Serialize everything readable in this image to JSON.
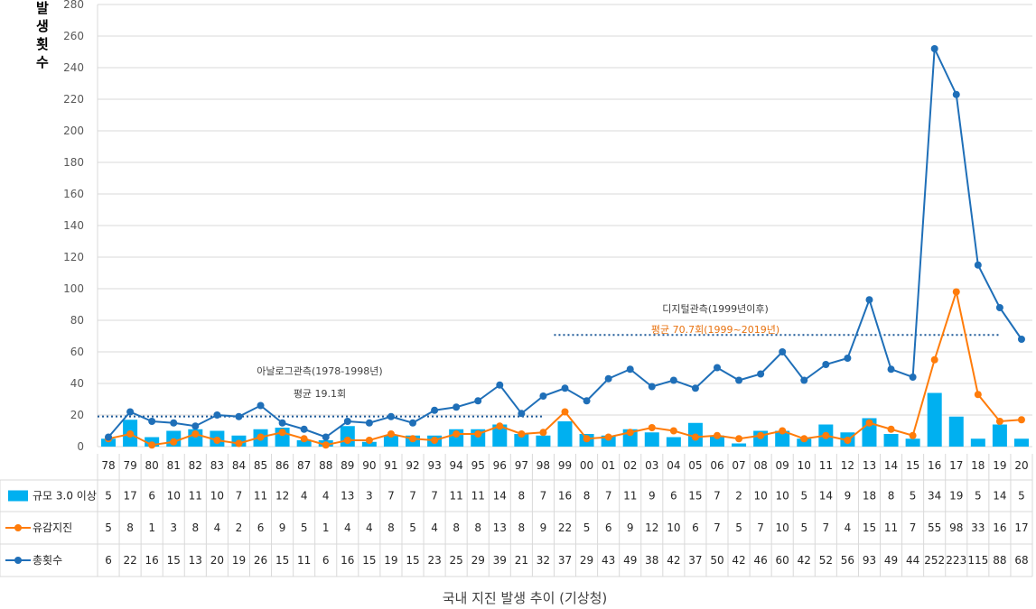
{
  "chart_data": {
    "type": "bar",
    "title": "국내 지진 발생 추이 (기상청)",
    "ylabel": "발생횟수",
    "ylim": [
      0,
      280
    ],
    "yticks": [
      0,
      20,
      40,
      60,
      80,
      100,
      120,
      140,
      160,
      180,
      200,
      220,
      240,
      260,
      280
    ],
    "grid": true,
    "categories": [
      "78",
      "79",
      "80",
      "81",
      "82",
      "83",
      "84",
      "85",
      "86",
      "87",
      "88",
      "89",
      "90",
      "91",
      "92",
      "93",
      "94",
      "95",
      "96",
      "97",
      "98",
      "99",
      "00",
      "01",
      "02",
      "03",
      "04",
      "05",
      "06",
      "07",
      "08",
      "09",
      "10",
      "11",
      "12",
      "13",
      "14",
      "15",
      "16",
      "17",
      "18",
      "19",
      "20"
    ],
    "series": [
      {
        "name": "규모 3.0 이상",
        "kind": "bar",
        "color": "#00b0f0",
        "values": [
          5,
          17,
          6,
          10,
          11,
          10,
          7,
          11,
          12,
          4,
          4,
          13,
          3,
          7,
          7,
          7,
          11,
          11,
          14,
          8,
          7,
          16,
          8,
          7,
          11,
          9,
          6,
          15,
          7,
          2,
          10,
          10,
          5,
          14,
          9,
          18,
          8,
          5,
          34,
          19,
          5,
          14,
          5
        ]
      },
      {
        "name": "유감지진",
        "kind": "line",
        "color": "#ff7c0a",
        "values": [
          5,
          8,
          1,
          3,
          8,
          4,
          2,
          6,
          9,
          5,
          1,
          4,
          4,
          8,
          5,
          4,
          8,
          8,
          13,
          8,
          9,
          22,
          5,
          6,
          9,
          12,
          10,
          6,
          7,
          5,
          7,
          10,
          5,
          7,
          4,
          15,
          11,
          7,
          55,
          98,
          33,
          16,
          17
        ]
      },
      {
        "name": "총횟수",
        "kind": "line",
        "color": "#1f6fb8",
        "values": [
          6,
          22,
          16,
          15,
          13,
          20,
          19,
          26,
          15,
          11,
          6,
          16,
          15,
          19,
          15,
          23,
          25,
          29,
          39,
          21,
          32,
          37,
          29,
          43,
          49,
          38,
          42,
          37,
          50,
          42,
          46,
          60,
          42,
          52,
          56,
          93,
          49,
          44,
          252,
          223,
          115,
          88,
          68
        ]
      }
    ],
    "annotations": {
      "analog_title": "아날로그관측(1978-1998년)",
      "analog_avg": "평균 19.1회",
      "digital_title": "디지털관측(1999년이후)",
      "digital_avg": "평균 70.7회(1999~2019년)"
    },
    "reference_lines": [
      {
        "value": 19.1,
        "from": "78",
        "to": "98",
        "color": "#1f5a99"
      },
      {
        "value": 70.7,
        "from": "99",
        "to": "19",
        "color": "#1f5a99"
      }
    ]
  }
}
